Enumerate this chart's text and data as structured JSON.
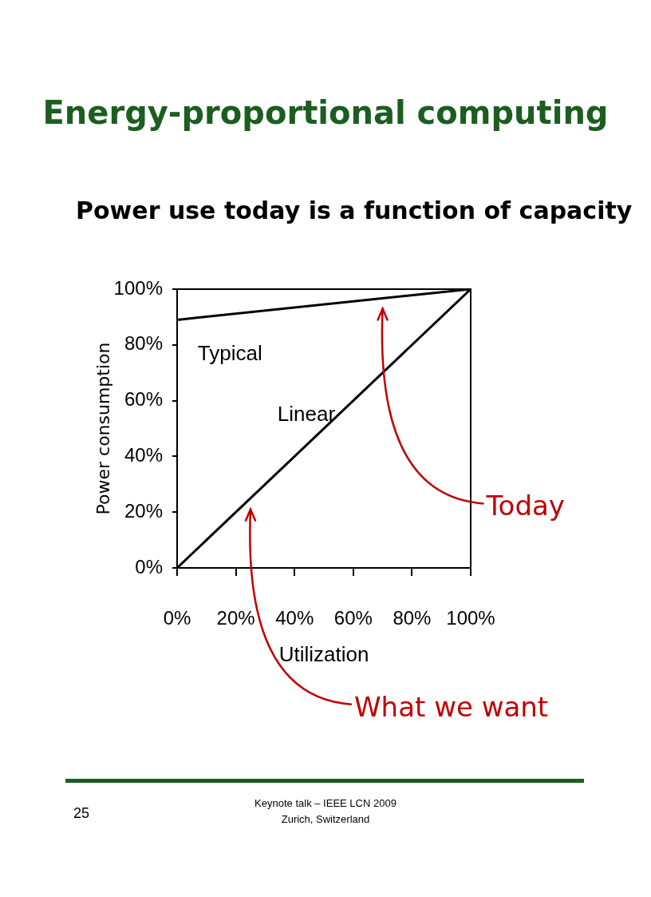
{
  "chart_data": {
    "type": "line",
    "title": "Energy-proportional computing",
    "subtitle": "Power use today is a function of capacity",
    "xlabel": "Utilization",
    "ylabel": "Power consumption",
    "x": [
      0,
      100
    ],
    "series": [
      {
        "name": "Typical",
        "color": "#000000",
        "values": [
          89,
          100
        ]
      },
      {
        "name": "Linear",
        "color": "#000000",
        "values": [
          0,
          100
        ]
      }
    ],
    "xlim": [
      0,
      100
    ],
    "ylim": [
      0,
      100
    ],
    "xticks": [
      {
        "value": 0,
        "label": "0%"
      },
      {
        "value": 20,
        "label": "20%"
      },
      {
        "value": 40,
        "label": "40%"
      },
      {
        "value": 60,
        "label": "60%"
      },
      {
        "value": 80,
        "label": "80%"
      },
      {
        "value": 100,
        "label": "100%"
      }
    ],
    "yticks": [
      {
        "value": 0,
        "label": "0%"
      },
      {
        "value": 20,
        "label": "20%"
      },
      {
        "value": 40,
        "label": "40%"
      },
      {
        "value": 60,
        "label": "60%"
      },
      {
        "value": 80,
        "label": "80%"
      },
      {
        "value": 100,
        "label": "100%"
      }
    ],
    "grid": false,
    "legend": false,
    "marker": "none",
    "line_style": "solid",
    "annotations": [
      "Today",
      "What we want",
      "25",
      "Keynote talk – IEEE LCN 2009",
      "Zurich, Switzerland"
    ]
  }
}
